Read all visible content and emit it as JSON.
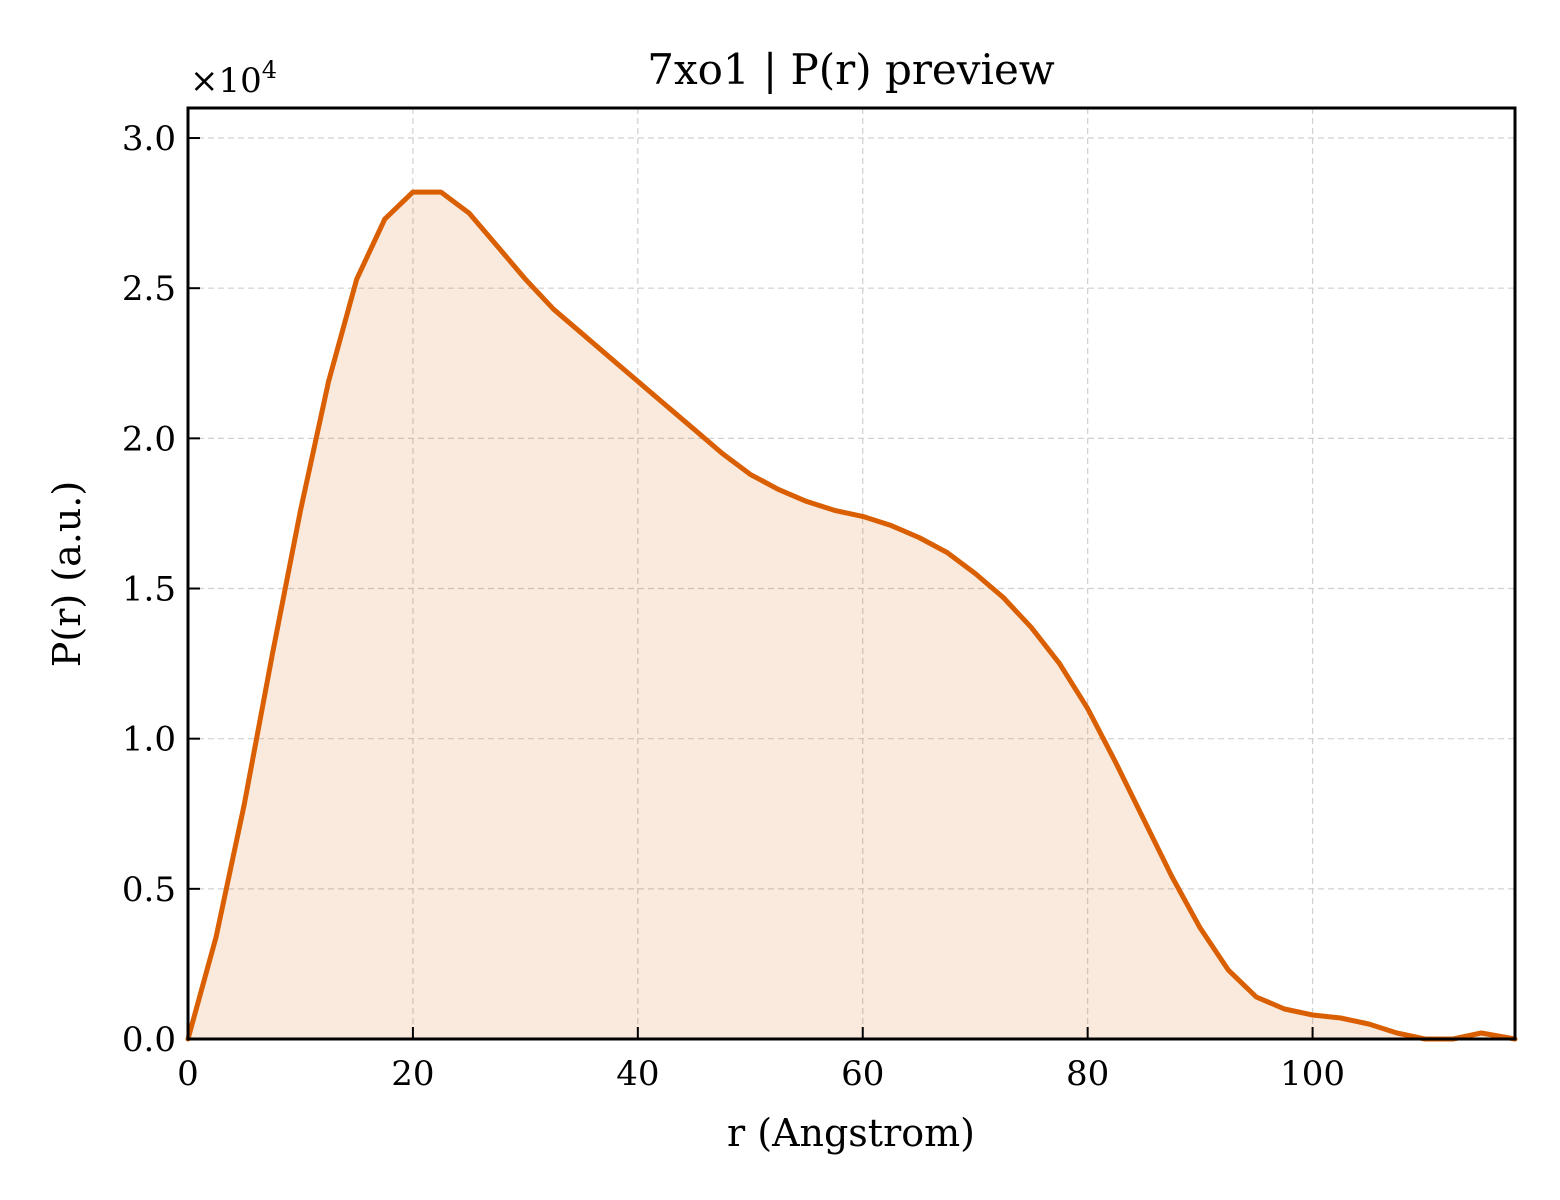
{
  "chart_data": {
    "type": "area",
    "title": "7xo1 | P(r) preview",
    "xlabel": "r (Angstrom)",
    "ylabel": "P(r) (a.u.)",
    "y_multiplier_label": "×10",
    "y_multiplier_exponent": "4",
    "xlim": [
      0,
      118
    ],
    "ylim": [
      0,
      3.1
    ],
    "x_ticks": [
      0,
      20,
      40,
      60,
      80,
      100
    ],
    "x_tick_labels": [
      "0",
      "20",
      "40",
      "60",
      "80",
      "100"
    ],
    "y_ticks": [
      0,
      0.5,
      1.0,
      1.5,
      2.0,
      2.5,
      3.0
    ],
    "y_tick_labels": [
      "0.0",
      "0.5",
      "1.0",
      "1.5",
      "2.0",
      "2.5",
      "3.0"
    ],
    "grid": true,
    "series": [
      {
        "color": "#d95f02",
        "fill_color": "#d95f02",
        "x": [
          0,
          2.5,
          5,
          7.5,
          10,
          12.5,
          15,
          17.5,
          20,
          22.5,
          25,
          27.5,
          30,
          32.5,
          35,
          37.5,
          40,
          42.5,
          45,
          47.5,
          50,
          52.5,
          55,
          57.5,
          60,
          62.5,
          65,
          67.5,
          70,
          72.5,
          75,
          77.5,
          80,
          82.5,
          85,
          87.5,
          90,
          92.5,
          95,
          97.5,
          100,
          102.5,
          105,
          107.5,
          110,
          112.5,
          115,
          118
        ],
        "y": [
          0.0,
          0.34,
          0.78,
          1.28,
          1.76,
          2.19,
          2.53,
          2.73,
          2.82,
          2.82,
          2.75,
          2.64,
          2.53,
          2.43,
          2.35,
          2.27,
          2.19,
          2.11,
          2.03,
          1.95,
          1.88,
          1.83,
          1.79,
          1.76,
          1.74,
          1.71,
          1.67,
          1.62,
          1.55,
          1.47,
          1.37,
          1.25,
          1.1,
          0.92,
          0.73,
          0.54,
          0.37,
          0.23,
          0.14,
          0.1,
          0.08,
          0.07,
          0.05,
          0.02,
          0.0,
          0.0,
          0.02,
          0.0
        ]
      }
    ]
  }
}
